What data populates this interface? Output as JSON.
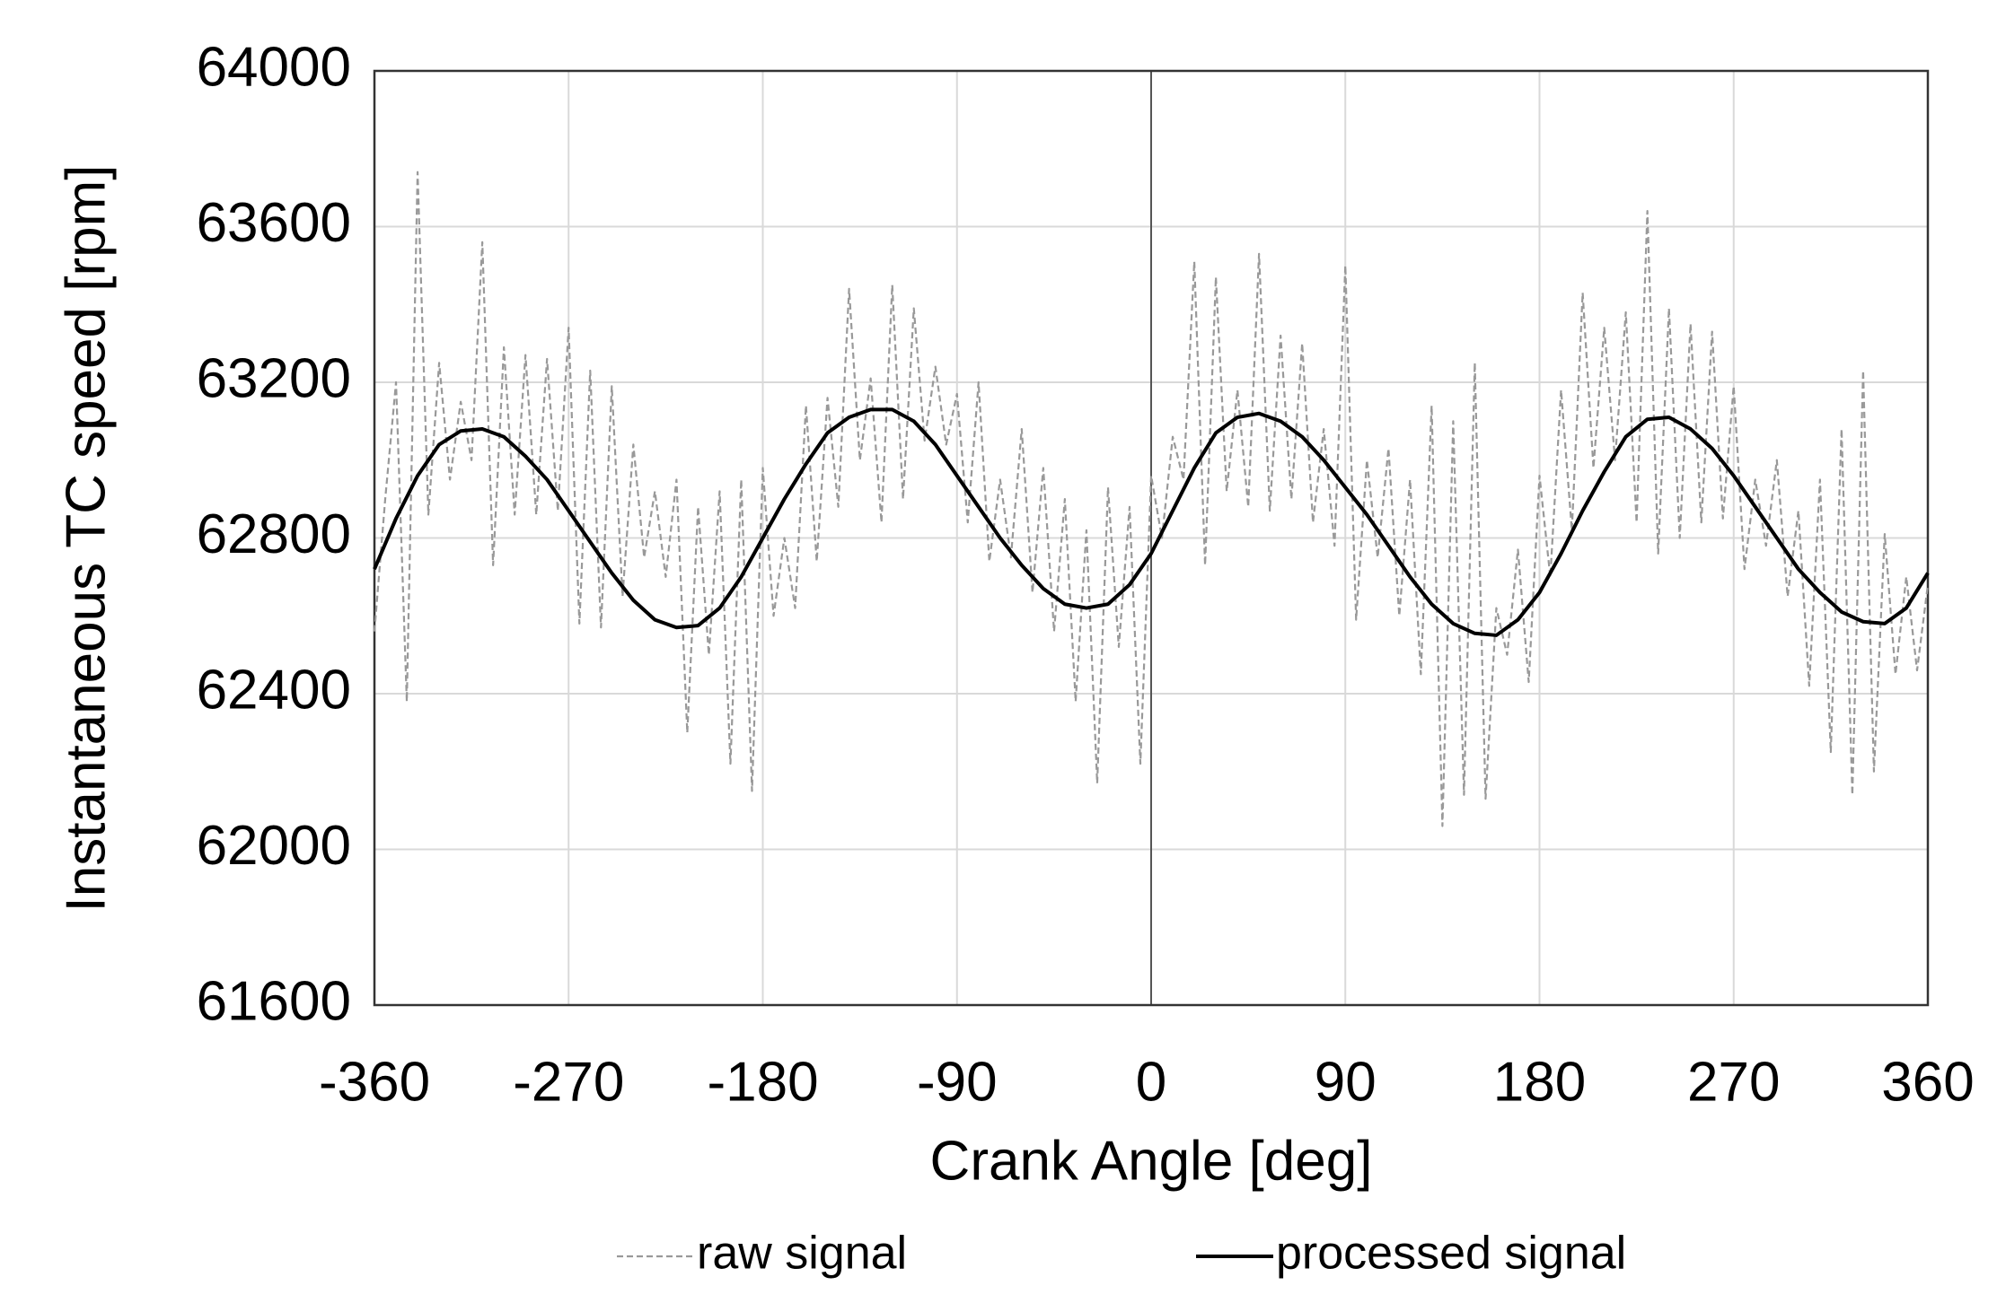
{
  "chart_data": {
    "type": "line",
    "x_label": "Crank Angle [deg]",
    "y_label": "Instantaneous TC speed [rpm]",
    "xlim": [
      -360,
      360
    ],
    "xticks": [
      -360,
      -270,
      -180,
      -90,
      0,
      90,
      180,
      270,
      360
    ],
    "ylim": [
      61600,
      64000
    ],
    "yticks": [
      61600,
      62000,
      62400,
      62800,
      63200,
      63600,
      64000
    ],
    "grid": true,
    "series": [
      {
        "name": "raw signal",
        "color": "#999999",
        "dashed": true,
        "x": [
          -360,
          -355,
          -350,
          -345,
          -340,
          -335,
          -330,
          -325,
          -320,
          -315,
          -310,
          -305,
          -300,
          -295,
          -290,
          -285,
          -280,
          -275,
          -270,
          -265,
          -260,
          -255,
          -250,
          -245,
          -240,
          -235,
          -230,
          -225,
          -220,
          -215,
          -210,
          -205,
          -200,
          -195,
          -190,
          -185,
          -180,
          -175,
          -170,
          -165,
          -160,
          -155,
          -150,
          -145,
          -140,
          -135,
          -130,
          -125,
          -120,
          -115,
          -110,
          -105,
          -100,
          -95,
          -90,
          -85,
          -80,
          -75,
          -70,
          -65,
          -60,
          -55,
          -50,
          -45,
          -40,
          -35,
          -30,
          -25,
          -20,
          -15,
          -10,
          -5,
          0,
          5,
          10,
          15,
          20,
          25,
          30,
          35,
          40,
          45,
          50,
          55,
          60,
          65,
          70,
          75,
          80,
          85,
          90,
          95,
          100,
          105,
          110,
          115,
          120,
          125,
          130,
          135,
          140,
          145,
          150,
          155,
          160,
          165,
          170,
          175,
          180,
          185,
          190,
          195,
          200,
          205,
          210,
          215,
          220,
          225,
          230,
          235,
          240,
          245,
          250,
          255,
          260,
          265,
          270,
          275,
          280,
          285,
          290,
          295,
          300,
          305,
          310,
          315,
          320,
          325,
          330,
          335,
          340,
          345,
          350,
          355,
          360
        ],
        "values": [
          62560,
          62900,
          63200,
          62380,
          63740,
          62860,
          63250,
          62950,
          63150,
          63000,
          63560,
          62730,
          63290,
          62860,
          63270,
          62860,
          63260,
          62870,
          63340,
          62580,
          63230,
          62570,
          63190,
          62650,
          63040,
          62750,
          62920,
          62700,
          62950,
          62300,
          62880,
          62500,
          62920,
          62220,
          62950,
          62150,
          62980,
          62600,
          62800,
          62620,
          63140,
          62740,
          63160,
          62880,
          63440,
          63000,
          63210,
          62840,
          63450,
          62900,
          63390,
          63050,
          63240,
          63040,
          63170,
          62840,
          63200,
          62740,
          62950,
          62750,
          63080,
          62660,
          62980,
          62560,
          62900,
          62380,
          62820,
          62170,
          62930,
          62520,
          62880,
          62220,
          62960,
          62800,
          63060,
          62950,
          63510,
          62730,
          63470,
          62920,
          63180,
          62880,
          63530,
          62870,
          63320,
          62900,
          63300,
          62840,
          63080,
          62780,
          63500,
          62590,
          63000,
          62750,
          63030,
          62600,
          62950,
          62450,
          63140,
          62060,
          63100,
          62140,
          63250,
          62130,
          62620,
          62500,
          62770,
          62430,
          62960,
          62700,
          63180,
          62820,
          63430,
          62980,
          63340,
          63000,
          63380,
          62840,
          63640,
          62760,
          63390,
          62800,
          63350,
          62840,
          63330,
          62850,
          63190,
          62720,
          62950,
          62780,
          63000,
          62650,
          62870,
          62420,
          62950,
          62250,
          63080,
          62140,
          63230,
          62200,
          62810,
          62450,
          62700,
          62460,
          62680
        ]
      },
      {
        "name": "processed signal",
        "color": "#000000",
        "dashed": false,
        "x": [
          -360,
          -350,
          -340,
          -330,
          -320,
          -310,
          -300,
          -290,
          -280,
          -270,
          -260,
          -250,
          -240,
          -230,
          -220,
          -210,
          -200,
          -190,
          -180,
          -170,
          -160,
          -150,
          -140,
          -130,
          -120,
          -110,
          -100,
          -90,
          -80,
          -70,
          -60,
          -50,
          -40,
          -30,
          -20,
          -10,
          0,
          10,
          20,
          30,
          40,
          50,
          60,
          70,
          80,
          90,
          100,
          110,
          120,
          130,
          140,
          150,
          160,
          170,
          180,
          190,
          200,
          210,
          220,
          230,
          240,
          250,
          260,
          270,
          280,
          290,
          300,
          310,
          320,
          330,
          340,
          350,
          360
        ],
        "values": [
          62720,
          62850,
          62960,
          63040,
          63075,
          63080,
          63060,
          63010,
          62950,
          62870,
          62790,
          62710,
          62640,
          62590,
          62570,
          62575,
          62620,
          62700,
          62800,
          62900,
          62990,
          63070,
          63110,
          63130,
          63130,
          63100,
          63040,
          62960,
          62880,
          62800,
          62730,
          62670,
          62630,
          62620,
          62630,
          62680,
          62760,
          62870,
          62980,
          63070,
          63110,
          63120,
          63100,
          63060,
          63000,
          62930,
          62860,
          62780,
          62700,
          62630,
          62580,
          62555,
          62550,
          62590,
          62660,
          62760,
          62870,
          62970,
          63060,
          63105,
          63110,
          63080,
          63030,
          62960,
          62880,
          62800,
          62720,
          62660,
          62610,
          62585,
          62580,
          62620,
          62710
        ]
      }
    ]
  }
}
